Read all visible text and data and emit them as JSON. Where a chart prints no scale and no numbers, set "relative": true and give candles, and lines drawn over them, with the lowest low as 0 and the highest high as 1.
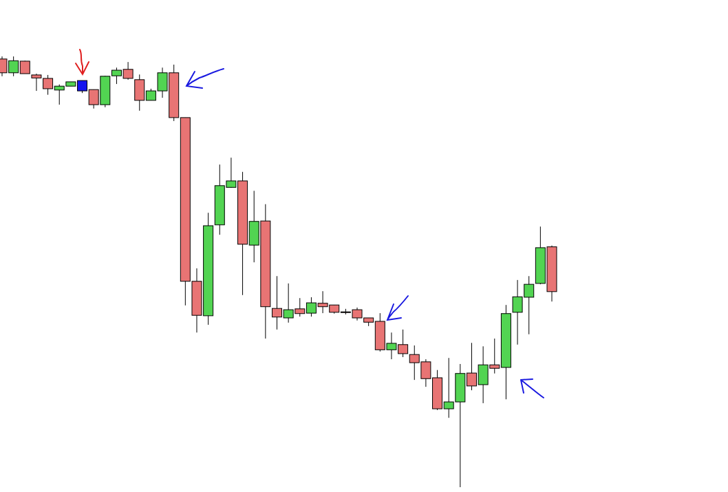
{
  "chart_data": {
    "type": "candlestick",
    "relative": true,
    "categories": [
      null,
      null,
      null,
      null,
      null,
      null,
      null,
      null,
      null,
      null,
      null,
      null,
      null,
      null,
      null,
      null,
      null,
      null,
      null,
      null,
      null,
      null,
      null,
      null,
      null,
      null,
      null,
      null,
      null,
      null,
      null,
      null,
      null,
      null,
      null,
      null,
      null,
      null,
      null,
      null,
      null,
      null,
      null,
      null,
      null,
      null,
      null,
      null,
      null
    ],
    "ohlc": [
      [
        0.994,
        1.0,
        0.954,
        0.962
      ],
      [
        0.962,
        1.0,
        0.954,
        0.99
      ],
      [
        0.989,
        0.99,
        0.96,
        0.96
      ],
      [
        0.957,
        0.96,
        0.92,
        0.95
      ],
      [
        0.949,
        0.957,
        0.911,
        0.925
      ],
      [
        0.922,
        0.935,
        0.888,
        0.931
      ],
      [
        0.931,
        0.941,
        0.931,
        0.941
      ],
      [
        0.944,
        0.944,
        0.915,
        0.92
      ],
      [
        0.923,
        0.923,
        0.879,
        0.888
      ],
      [
        0.888,
        0.955,
        0.882,
        0.954
      ],
      [
        0.955,
        0.974,
        0.936,
        0.968
      ],
      [
        0.97,
        0.987,
        0.946,
        0.949
      ],
      [
        0.946,
        0.958,
        0.874,
        0.898
      ],
      [
        0.898,
        0.925,
        0.898,
        0.92
      ],
      [
        0.92,
        0.974,
        0.904,
        0.962
      ],
      [
        0.962,
        0.981,
        0.85,
        0.858
      ],
      [
        0.858,
        0.858,
        0.422,
        0.478
      ],
      [
        0.478,
        0.508,
        0.359,
        0.399
      ],
      [
        0.398,
        0.637,
        0.377,
        0.607
      ],
      [
        0.609,
        0.749,
        0.586,
        0.7
      ],
      [
        0.696,
        0.765,
        0.695,
        0.711
      ],
      [
        0.711,
        0.732,
        0.446,
        0.564
      ],
      [
        0.562,
        0.688,
        0.522,
        0.617
      ],
      [
        0.618,
        0.657,
        0.345,
        0.419
      ],
      [
        0.415,
        0.49,
        0.366,
        0.395
      ],
      [
        0.393,
        0.473,
        0.382,
        0.412
      ],
      [
        0.414,
        0.439,
        0.396,
        0.403
      ],
      [
        0.404,
        0.441,
        0.396,
        0.428
      ],
      [
        0.427,
        0.455,
        0.404,
        0.419
      ],
      [
        0.423,
        0.423,
        0.403,
        0.406
      ],
      [
        0.407,
        0.414,
        0.401,
        0.407
      ],
      [
        0.412,
        0.417,
        0.387,
        0.393
      ],
      [
        0.393,
        0.393,
        0.374,
        0.383
      ],
      [
        0.385,
        0.404,
        0.315,
        0.319
      ],
      [
        0.319,
        0.359,
        0.297,
        0.334
      ],
      [
        0.331,
        0.366,
        0.302,
        0.31
      ],
      [
        0.308,
        0.329,
        0.249,
        0.289
      ],
      [
        0.291,
        0.297,
        0.233,
        0.252
      ],
      [
        0.254,
        0.272,
        0.179,
        0.182
      ],
      [
        0.182,
        0.3,
        0.161,
        0.198
      ],
      [
        0.198,
        0.286,
        0.0,
        0.264
      ],
      [
        0.265,
        0.335,
        0.225,
        0.235
      ],
      [
        0.238,
        0.327,
        0.195,
        0.284
      ],
      [
        0.284,
        0.345,
        0.264,
        0.276
      ],
      [
        0.278,
        0.423,
        0.204,
        0.403
      ],
      [
        0.406,
        0.481,
        0.331,
        0.442
      ],
      [
        0.441,
        0.49,
        0.355,
        0.471
      ],
      [
        0.473,
        0.605,
        0.471,
        0.556
      ],
      [
        0.558,
        0.561,
        0.431,
        0.454
      ]
    ],
    "colors": [
      "#e87474",
      "#52d452",
      "#e87474",
      "#e87474",
      "#e87474",
      "#52d452",
      "#52d452",
      "#1414ee",
      "#e87474",
      "#52d452",
      "#52d452",
      "#e87474",
      "#e87474",
      "#52d452",
      "#52d452",
      "#e87474",
      "#e87474",
      "#e87474",
      "#52d452",
      "#52d452",
      "#52d452",
      "#e87474",
      "#52d452",
      "#e87474",
      "#e87474",
      "#52d452",
      "#e87474",
      "#52d452",
      "#e87474",
      "#e87474",
      "#e87474",
      "#e87474",
      "#e87474",
      "#e87474",
      "#52d452",
      "#e87474",
      "#e87474",
      "#e87474",
      "#e87474",
      "#52d452",
      "#52d452",
      "#e87474",
      "#52d452",
      "#e87474",
      "#52d452",
      "#52d452",
      "#52d452",
      "#52d452",
      "#e87474"
    ]
  }
}
